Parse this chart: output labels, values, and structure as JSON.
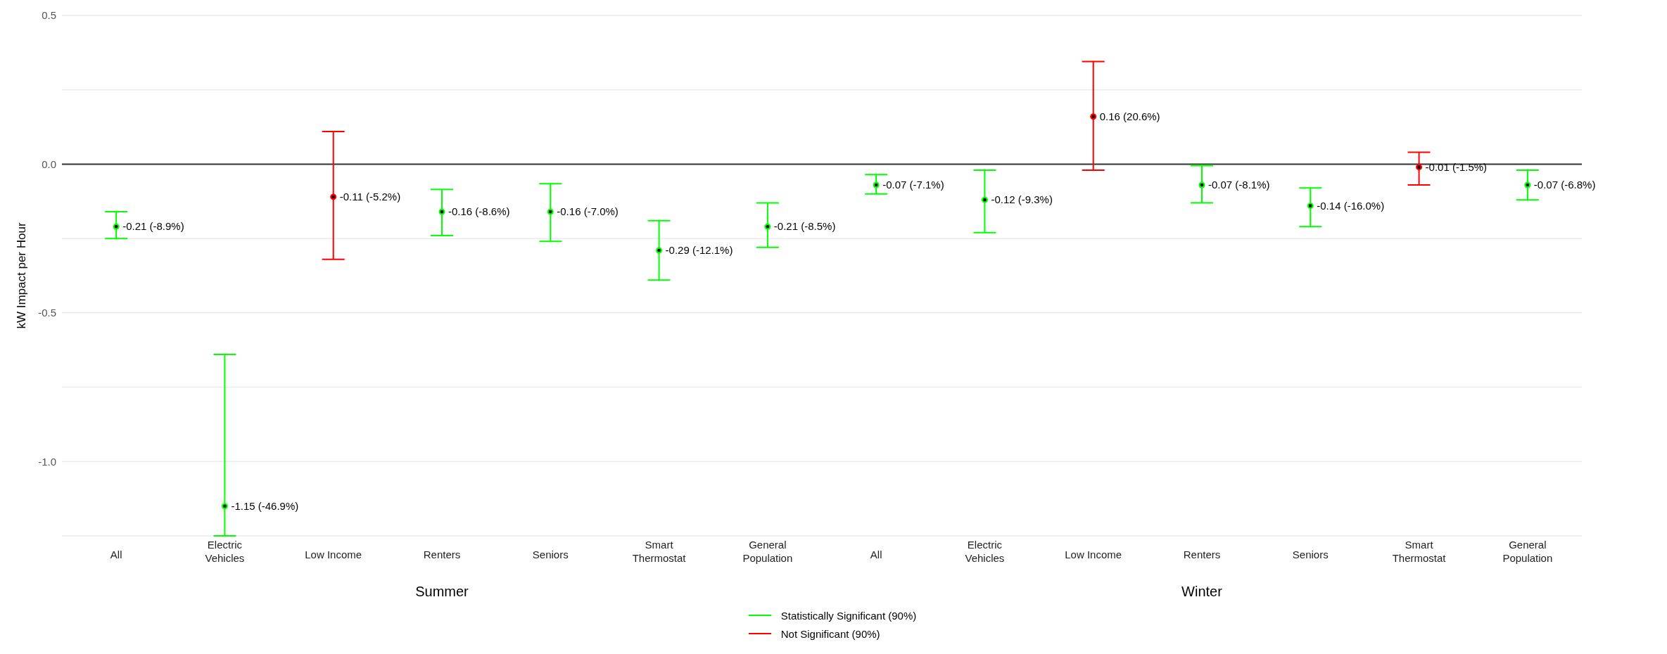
{
  "chart_data": {
    "type": "scatter",
    "categories": [
      "All",
      "Electric Vehicles",
      "Low Income",
      "Renters",
      "Seniors",
      "Smart Thermostat",
      "General Population",
      "All",
      "Electric Vehicles",
      "Low Income",
      "Renters",
      "Seniors",
      "Smart Thermostat",
      "General Population"
    ],
    "ylabel": "kW Impact per Hour",
    "annotations": [
      "Summer",
      "Winter"
    ],
    "series": [
      {
        "name": "Statistically Significant (90%)",
        "color": "#00ff00",
        "values": [
          -0.21,
          -1.15,
          null,
          -0.16,
          -0.16,
          -0.29,
          -0.21,
          -0.07,
          -0.12,
          null,
          -0.07,
          -0.14,
          null,
          -0.07
        ],
        "errors": [
          [
            -0.25,
            -0.16
          ],
          [
            -1.25,
            -0.64
          ],
          null,
          [
            -0.24,
            -0.085
          ],
          [
            -0.26,
            -0.066
          ],
          [
            -0.39,
            -0.19
          ],
          [
            -0.28,
            -0.13
          ],
          [
            -0.1,
            -0.035
          ],
          [
            -0.23,
            -0.02
          ],
          null,
          [
            -0.13,
            -0.005
          ],
          [
            -0.21,
            -0.08
          ],
          null,
          [
            -0.12,
            -0.02
          ]
        ],
        "value_labels": [
          "-0.21 (-8.9%)",
          "-1.15 (-46.9%)",
          null,
          "-0.16 (-8.6%)",
          "-0.16 (-7.0%)",
          "-0.29 (-12.1%)",
          "-0.21 (-8.5%)",
          "-0.07 (-7.1%)",
          "-0.12 (-9.3%)",
          null,
          "-0.07 (-8.1%)",
          "-0.14 (-16.0%)",
          null,
          "-0.07 (-6.8%)"
        ]
      },
      {
        "name": "Not Significant (90%)",
        "color": "#ff0000",
        "values": [
          null,
          null,
          -0.11,
          null,
          null,
          null,
          null,
          null,
          null,
          0.16,
          null,
          null,
          -0.01,
          null
        ],
        "errors": [
          null,
          null,
          [
            -0.32,
            0.11
          ],
          null,
          null,
          null,
          null,
          null,
          null,
          [
            -0.02,
            0.345
          ],
          null,
          null,
          [
            -0.07,
            0.04
          ],
          null
        ],
        "value_labels": [
          null,
          null,
          "-0.11 (-5.2%)",
          null,
          null,
          null,
          null,
          null,
          null,
          "0.16 (20.6%)",
          null,
          null,
          "-0.01 (-1.5%)",
          null
        ]
      }
    ],
    "ylim": [
      -1.25,
      0.5
    ],
    "yticks": [
      {
        "value": -1.25,
        "label": null
      },
      {
        "value": -1,
        "label": "-1.0"
      },
      {
        "value": -0.75,
        "label": null
      },
      {
        "value": -0.5,
        "label": "-0.5"
      },
      {
        "value": -0.25,
        "label": null
      },
      {
        "value": 0,
        "label": "0.0"
      },
      {
        "value": 0.25,
        "label": null
      },
      {
        "value": 0.5,
        "label": "0.5"
      }
    ],
    "ref_lines": [
      {
        "axis": "y",
        "value": 0,
        "color": "#333333"
      }
    ],
    "grid": "y",
    "legend": "bottom",
    "marker": "circle"
  }
}
